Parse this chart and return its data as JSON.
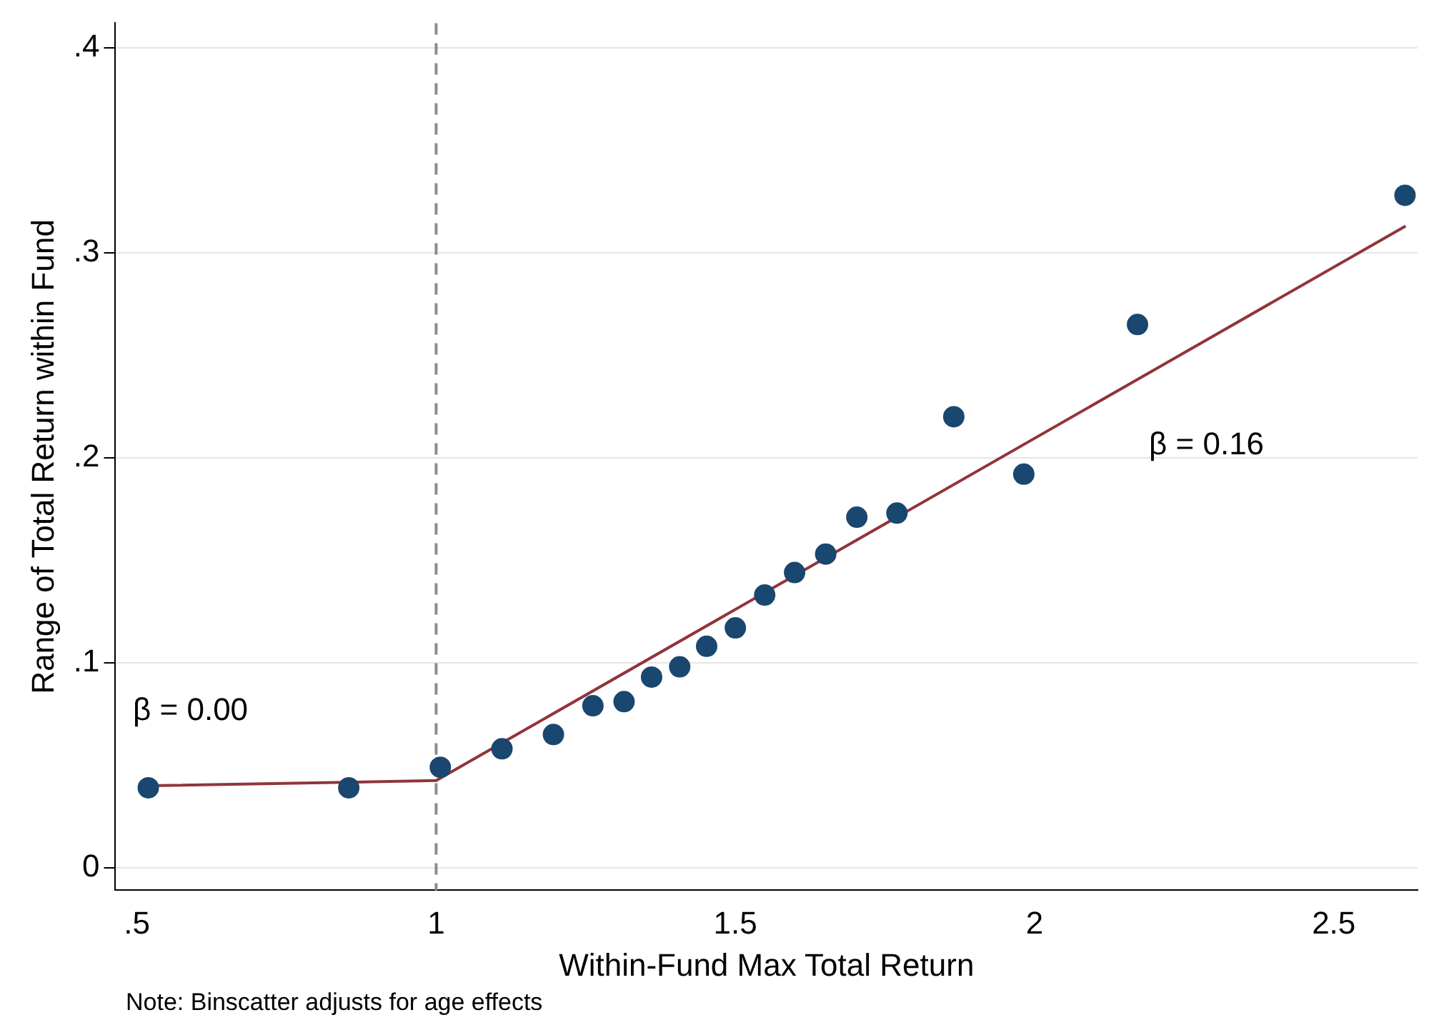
{
  "chart_data": {
    "type": "scatter",
    "xlabel": "Within-Fund Max Total Return",
    "ylabel": "Range of Total Return within Fund",
    "xlim": [
      0.464,
      2.64
    ],
    "ylim": [
      -0.011,
      0.412
    ],
    "xticks": [
      {
        "value": 0.5,
        "label": ".5"
      },
      1,
      1.5,
      2,
      2.5
    ],
    "yticks": [
      0,
      {
        "value": 0.1,
        "label": ".1"
      },
      {
        "value": 0.2,
        "label": ".2"
      },
      {
        "value": 0.3,
        "label": ".3"
      },
      {
        "value": 0.4,
        "label": ".4"
      }
    ],
    "grid": "y",
    "legend": false,
    "series": [
      {
        "marker": "circle",
        "color": "#1a476f",
        "x": [
          0.519,
          0.854,
          1.007,
          1.11,
          1.196,
          1.262,
          1.314,
          1.36,
          1.407,
          1.452,
          1.5,
          1.549,
          1.599,
          1.651,
          1.703,
          1.77,
          1.865,
          1.982,
          2.172,
          2.619
        ],
        "values": [
          0.039,
          0.039,
          0.049,
          0.058,
          0.065,
          0.079,
          0.081,
          0.093,
          0.098,
          0.108,
          0.117,
          0.133,
          0.144,
          0.153,
          0.171,
          0.173,
          0.22,
          0.192,
          0.265,
          0.328
        ]
      },
      {
        "type": "line",
        "marker": "none",
        "color": "#90353b",
        "line_style": "solid",
        "x": [
          0.519,
          1.0,
          2.62
        ],
        "values": [
          0.04,
          0.0425,
          0.313
        ]
      }
    ],
    "ref_lines": [
      {
        "axis": "x",
        "value": 1,
        "color": "#8c8c8c",
        "line_style": "dashed"
      }
    ],
    "annotations": [
      "β = 0.00",
      "β = 0.16",
      "Note: Binscatter adjusts for age effects"
    ]
  }
}
